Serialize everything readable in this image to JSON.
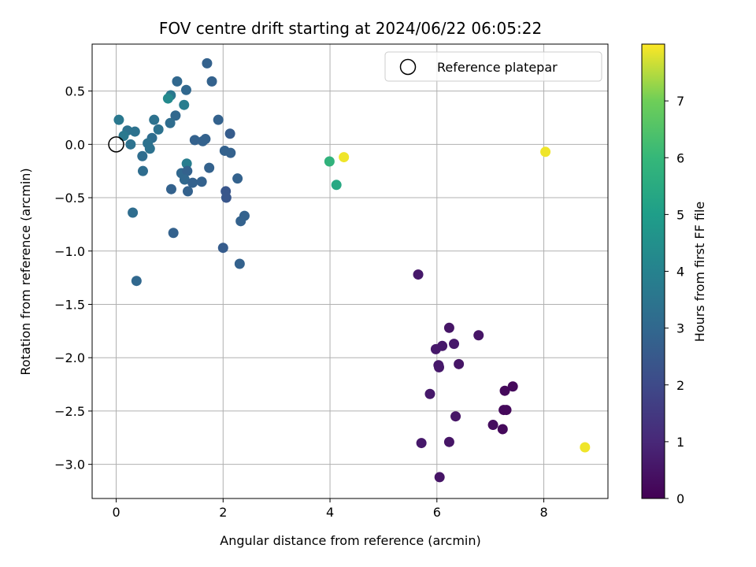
{
  "chart_data": {
    "type": "scatter",
    "title": "FOV centre drift starting at 2024/06/22 06:05:22",
    "xlabel": "Angular distance from reference (arcmin)",
    "ylabel": "Rotation from reference (arcmin)",
    "xlim": [
      -0.45,
      9.2
    ],
    "ylim": [
      -3.32,
      0.94
    ],
    "x_ticks": [
      0,
      2,
      4,
      6,
      8
    ],
    "x_tick_labels": [
      "0",
      "2",
      "4",
      "6",
      "8"
    ],
    "y_ticks": [
      0.5,
      0.0,
      -0.5,
      -1.0,
      -1.5,
      -2.0,
      -2.5,
      -3.0
    ],
    "y_tick_labels": [
      "0.5",
      "0.0",
      "−0.5",
      "−1.0",
      "−1.5",
      "−2.0",
      "−2.5",
      "−3.0"
    ],
    "grid": true,
    "legend": {
      "position": "top-right",
      "entries": [
        "Reference platepar"
      ]
    },
    "reference_point": {
      "x": 0.0,
      "y": 0.0
    },
    "colorbar": {
      "label": "Hours from first FF file",
      "range": [
        0,
        8
      ],
      "ticks": [
        0,
        1,
        2,
        3,
        4,
        5,
        6,
        7
      ],
      "tick_labels": [
        "0",
        "1",
        "2",
        "3",
        "4",
        "5",
        "6",
        "7"
      ],
      "colormap": "viridis"
    },
    "points": [
      {
        "x": 5.65,
        "y": -1.22,
        "c": 0.6
      },
      {
        "x": 6.23,
        "y": -1.72,
        "c": 0.5
      },
      {
        "x": 6.78,
        "y": -1.79,
        "c": 0.5
      },
      {
        "x": 6.32,
        "y": -1.87,
        "c": 0.6
      },
      {
        "x": 6.1,
        "y": -1.89,
        "c": 0.6
      },
      {
        "x": 5.98,
        "y": -1.92,
        "c": 0.6
      },
      {
        "x": 6.03,
        "y": -2.07,
        "c": 0.6
      },
      {
        "x": 6.41,
        "y": -2.06,
        "c": 0.5
      },
      {
        "x": 6.04,
        "y": -2.09,
        "c": 0.6
      },
      {
        "x": 7.42,
        "y": -2.27,
        "c": 0.2
      },
      {
        "x": 7.27,
        "y": -2.31,
        "c": 0.2
      },
      {
        "x": 5.87,
        "y": -2.34,
        "c": 0.6
      },
      {
        "x": 7.3,
        "y": -2.49,
        "c": 0.2
      },
      {
        "x": 7.25,
        "y": -2.49,
        "c": 0.2
      },
      {
        "x": 6.35,
        "y": -2.55,
        "c": 0.5
      },
      {
        "x": 7.05,
        "y": -2.63,
        "c": 0.3
      },
      {
        "x": 7.23,
        "y": -2.67,
        "c": 0.2
      },
      {
        "x": 5.71,
        "y": -2.8,
        "c": 0.6
      },
      {
        "x": 6.23,
        "y": -2.79,
        "c": 0.5
      },
      {
        "x": 6.05,
        "y": -3.12,
        "c": 0.5
      },
      {
        "x": 1.7,
        "y": 0.76,
        "c": 2.8
      },
      {
        "x": 1.14,
        "y": 0.59,
        "c": 3.0
      },
      {
        "x": 1.79,
        "y": 0.59,
        "c": 2.8
      },
      {
        "x": 1.31,
        "y": 0.51,
        "c": 3.0
      },
      {
        "x": 1.02,
        "y": 0.46,
        "c": 3.6
      },
      {
        "x": 0.97,
        "y": 0.43,
        "c": 4.3
      },
      {
        "x": 1.27,
        "y": 0.37,
        "c": 3.8
      },
      {
        "x": 1.11,
        "y": 0.27,
        "c": 3.0
      },
      {
        "x": 0.05,
        "y": 0.23,
        "c": 3.6
      },
      {
        "x": 0.71,
        "y": 0.23,
        "c": 3.4
      },
      {
        "x": 1.91,
        "y": 0.23,
        "c": 2.8
      },
      {
        "x": 1.01,
        "y": 0.2,
        "c": 3.2
      },
      {
        "x": 0.79,
        "y": 0.14,
        "c": 3.4
      },
      {
        "x": 0.21,
        "y": 0.13,
        "c": 3.4
      },
      {
        "x": 0.35,
        "y": 0.12,
        "c": 3.4
      },
      {
        "x": 2.13,
        "y": 0.1,
        "c": 2.6
      },
      {
        "x": 0.14,
        "y": 0.08,
        "c": 3.6
      },
      {
        "x": 0.67,
        "y": 0.06,
        "c": 3.2
      },
      {
        "x": 1.47,
        "y": 0.04,
        "c": 2.8
      },
      {
        "x": 1.67,
        "y": 0.05,
        "c": 2.8
      },
      {
        "x": 1.62,
        "y": 0.03,
        "c": 2.8
      },
      {
        "x": 0.59,
        "y": 0.01,
        "c": 3.4
      },
      {
        "x": 0.27,
        "y": 0.0,
        "c": 3.4
      },
      {
        "x": 0.63,
        "y": -0.04,
        "c": 3.4
      },
      {
        "x": 2.03,
        "y": -0.06,
        "c": 2.8
      },
      {
        "x": 2.14,
        "y": -0.08,
        "c": 2.8
      },
      {
        "x": 0.49,
        "y": -0.11,
        "c": 3.2
      },
      {
        "x": 1.32,
        "y": -0.18,
        "c": 3.8
      },
      {
        "x": 1.74,
        "y": -0.22,
        "c": 2.8
      },
      {
        "x": 0.5,
        "y": -0.25,
        "c": 3.2
      },
      {
        "x": 1.22,
        "y": -0.27,
        "c": 3.0
      },
      {
        "x": 1.33,
        "y": -0.25,
        "c": 2.8
      },
      {
        "x": 2.27,
        "y": -0.32,
        "c": 2.8
      },
      {
        "x": 1.28,
        "y": -0.33,
        "c": 3.0
      },
      {
        "x": 1.43,
        "y": -0.36,
        "c": 2.8
      },
      {
        "x": 1.6,
        "y": -0.35,
        "c": 2.8
      },
      {
        "x": 1.03,
        "y": -0.42,
        "c": 2.8
      },
      {
        "x": 1.34,
        "y": -0.44,
        "c": 2.8
      },
      {
        "x": 2.05,
        "y": -0.44,
        "c": 2.4
      },
      {
        "x": 2.06,
        "y": -0.5,
        "c": 2.4
      },
      {
        "x": 0.31,
        "y": -0.64,
        "c": 3.2
      },
      {
        "x": 2.4,
        "y": -0.67,
        "c": 2.8
      },
      {
        "x": 2.33,
        "y": -0.72,
        "c": 2.8
      },
      {
        "x": 1.07,
        "y": -0.83,
        "c": 2.8
      },
      {
        "x": 2.0,
        "y": -0.97,
        "c": 2.6
      },
      {
        "x": 2.31,
        "y": -1.12,
        "c": 2.8
      },
      {
        "x": 0.38,
        "y": -1.28,
        "c": 3.0
      },
      {
        "x": 3.99,
        "y": -0.16,
        "c": 5.8
      },
      {
        "x": 4.12,
        "y": -0.38,
        "c": 5.4
      },
      {
        "x": 4.26,
        "y": -0.12,
        "c": 7.9
      },
      {
        "x": 8.03,
        "y": -0.07,
        "c": 7.9
      },
      {
        "x": 8.77,
        "y": -2.84,
        "c": 7.9
      }
    ]
  }
}
